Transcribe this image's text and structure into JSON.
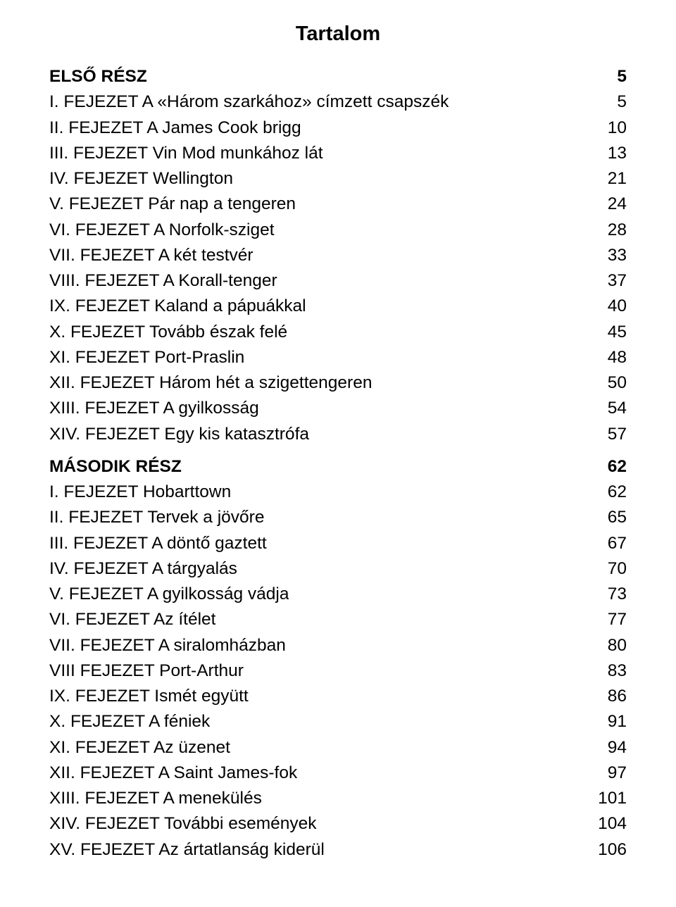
{
  "title": "Tartalom",
  "typography": {
    "title_fontsize": 29,
    "body_fontsize": 24.5,
    "line_height": 1.48,
    "font_family": "Arial, Helvetica, sans-serif",
    "text_color": "#000000",
    "background_color": "#ffffff"
  },
  "sections": [
    {
      "header": {
        "label": "ELSŐ RÉSZ",
        "page": "5"
      },
      "entries": [
        {
          "label": "I. FEJEZET A «Három szarkához» címzett csapszék",
          "page": "5"
        },
        {
          "label": "II. FEJEZET A James Cook brigg",
          "page": "10"
        },
        {
          "label": "III. FEJEZET Vin Mod munkához lát",
          "page": "13"
        },
        {
          "label": "IV. FEJEZET Wellington",
          "page": "21"
        },
        {
          "label": "V. FEJEZET Pár nap a tengeren",
          "page": "24"
        },
        {
          "label": "VI. FEJEZET A Norfolk-sziget",
          "page": "28"
        },
        {
          "label": "VII. FEJEZET A két testvér",
          "page": "33"
        },
        {
          "label": "VIII. FEJEZET A Korall-tenger",
          "page": "37"
        },
        {
          "label": "IX. FEJEZET Kaland a pápuákkal",
          "page": "40"
        },
        {
          "label": "X. FEJEZET Tovább észak felé",
          "page": "45"
        },
        {
          "label": "XI. FEJEZET Port-Praslin",
          "page": "48"
        },
        {
          "label": "XII. FEJEZET Három hét a szigettengeren",
          "page": "50"
        },
        {
          "label": "XIII. FEJEZET A gyilkosság",
          "page": "54"
        },
        {
          "label": "XIV. FEJEZET Egy kis katasztrófa",
          "page": "57"
        }
      ]
    },
    {
      "header": {
        "label": "MÁSODIK RÉSZ",
        "page": "62"
      },
      "entries": [
        {
          "label": "I. FEJEZET Hobarttown",
          "page": "62"
        },
        {
          "label": "II. FEJEZET Tervek a jövőre",
          "page": "65"
        },
        {
          "label": "III. FEJEZET A döntő gaztett",
          "page": "67"
        },
        {
          "label": "IV. FEJEZET A tárgyalás",
          "page": "70"
        },
        {
          "label": "V. FEJEZET A gyilkosság vádja",
          "page": "73"
        },
        {
          "label": "VI. FEJEZET Az ítélet",
          "page": "77"
        },
        {
          "label": "VII. FEJEZET A siralomházban",
          "page": "80"
        },
        {
          "label": "VIII FEJEZET Port-Arthur",
          "page": "83"
        },
        {
          "label": "IX. FEJEZET Ismét együtt",
          "page": "86"
        },
        {
          "label": "X. FEJEZET A féniek",
          "page": "91"
        },
        {
          "label": "XI. FEJEZET Az üzenet",
          "page": "94"
        },
        {
          "label": "XII. FEJEZET A Saint James-fok",
          "page": "97"
        },
        {
          "label": "XIII. FEJEZET A menekülés",
          "page": "101"
        },
        {
          "label": "XIV. FEJEZET További események",
          "page": "104"
        },
        {
          "label": "XV. FEJEZET Az ártatlanság kiderül",
          "page": "106"
        }
      ]
    }
  ]
}
